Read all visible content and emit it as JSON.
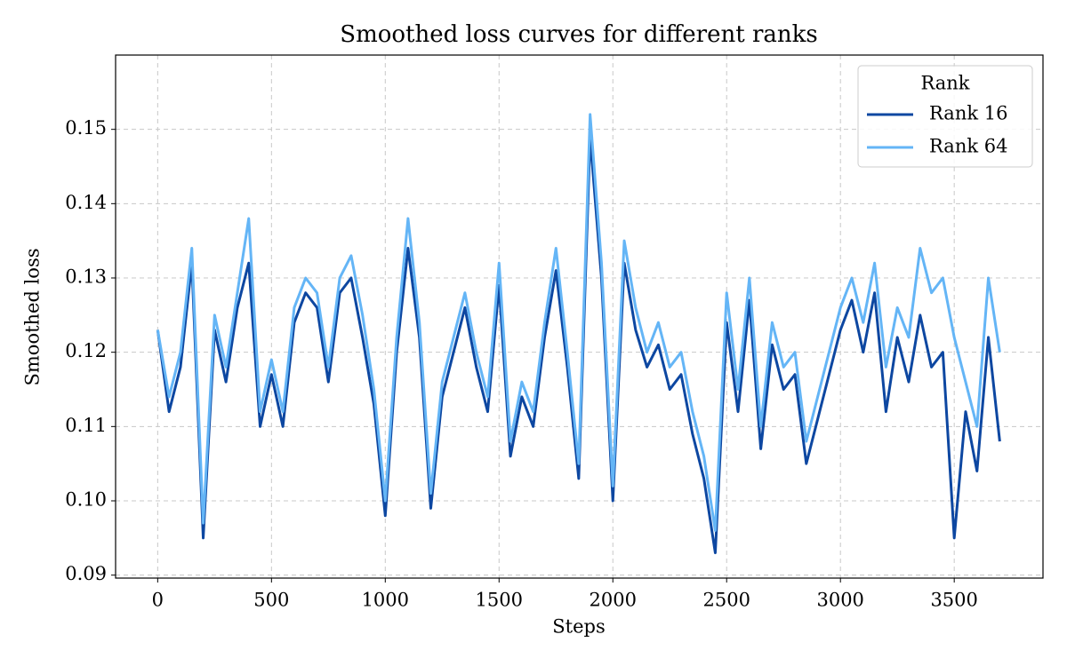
{
  "chart_data": {
    "type": "line",
    "title": "Smoothed loss curves for different ranks",
    "x_label": "Steps",
    "y_label": "Smoothed loss",
    "legend_title": "Rank",
    "legend_position": "upper right",
    "grid": true,
    "xlim": [
      -185,
      3890
    ],
    "xticks": [
      0,
      500,
      1000,
      1500,
      2000,
      2500,
      3000,
      3500
    ],
    "ylim": [
      0.0896,
      0.16
    ],
    "yticks": [
      {
        "value": 0.09,
        "label": "0.09"
      },
      {
        "value": 0.1,
        "label": "0.10"
      },
      {
        "value": 0.11,
        "label": "0.11"
      },
      {
        "value": 0.12,
        "label": "0.12"
      },
      {
        "value": 0.13,
        "label": "0.13"
      },
      {
        "value": 0.14,
        "label": "0.14"
      },
      {
        "value": 0.15,
        "label": "0.15"
      }
    ],
    "x": [
      0,
      50,
      100,
      150,
      200,
      250,
      300,
      350,
      400,
      450,
      500,
      550,
      600,
      650,
      700,
      750,
      800,
      850,
      900,
      950,
      1000,
      1050,
      1100,
      1150,
      1200,
      1250,
      1300,
      1350,
      1400,
      1450,
      1500,
      1550,
      1600,
      1650,
      1700,
      1750,
      1800,
      1850,
      1900,
      1950,
      2000,
      2050,
      2100,
      2150,
      2200,
      2250,
      2300,
      2350,
      2400,
      2450,
      2500,
      2550,
      2600,
      2650,
      2700,
      2750,
      2800,
      2850,
      2900,
      2950,
      3000,
      3050,
      3100,
      3150,
      3200,
      3250,
      3300,
      3350,
      3400,
      3450,
      3500,
      3550,
      3600,
      3650,
      3700
    ],
    "series": [
      {
        "name": "Rank 16",
        "color": "#0d47a1",
        "values": [
          0.123,
          0.112,
          0.118,
          0.132,
          0.095,
          0.123,
          0.116,
          0.126,
          0.132,
          0.11,
          0.117,
          0.11,
          0.124,
          0.128,
          0.126,
          0.116,
          0.128,
          0.13,
          0.122,
          0.113,
          0.098,
          0.12,
          0.134,
          0.122,
          0.099,
          0.114,
          0.12,
          0.126,
          0.118,
          0.112,
          0.129,
          0.106,
          0.114,
          0.11,
          0.122,
          0.131,
          0.118,
          0.103,
          0.149,
          0.13,
          0.1,
          0.132,
          0.123,
          0.118,
          0.121,
          0.115,
          0.117,
          0.109,
          0.103,
          0.093,
          0.124,
          0.112,
          0.127,
          0.107,
          0.121,
          0.115,
          0.117,
          0.105,
          0.111,
          0.117,
          0.123,
          0.127,
          0.12,
          0.128,
          0.112,
          0.122,
          0.116,
          0.125,
          0.118,
          0.12,
          0.095,
          0.112,
          0.104,
          0.122,
          0.108
        ]
      },
      {
        "name": "Rank 64",
        "color": "#64b5f6",
        "values": [
          0.123,
          0.114,
          0.12,
          0.134,
          0.097,
          0.125,
          0.118,
          0.128,
          0.138,
          0.112,
          0.119,
          0.112,
          0.126,
          0.13,
          0.128,
          0.118,
          0.13,
          0.133,
          0.125,
          0.115,
          0.1,
          0.122,
          0.138,
          0.124,
          0.101,
          0.116,
          0.122,
          0.128,
          0.12,
          0.114,
          0.132,
          0.108,
          0.116,
          0.112,
          0.124,
          0.134,
          0.12,
          0.105,
          0.152,
          0.132,
          0.102,
          0.135,
          0.126,
          0.12,
          0.124,
          0.118,
          0.12,
          0.112,
          0.106,
          0.096,
          0.128,
          0.115,
          0.13,
          0.11,
          0.124,
          0.118,
          0.12,
          0.108,
          0.114,
          0.12,
          0.126,
          0.13,
          0.124,
          0.132,
          0.118,
          0.126,
          0.122,
          0.134,
          0.128,
          0.13,
          0.122,
          0.116,
          0.11,
          0.13,
          0.12
        ]
      }
    ]
  }
}
